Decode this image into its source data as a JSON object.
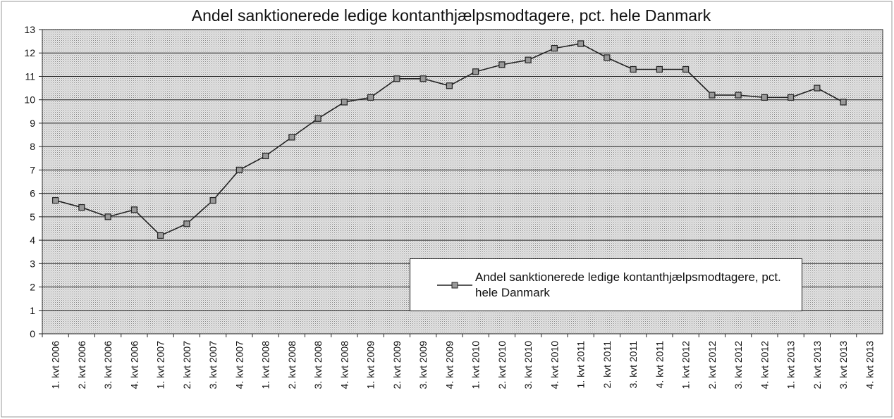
{
  "chart_data": {
    "type": "line",
    "title": "Andel sanktionerede ledige kontanthjælpsmodtagere, pct. hele Danmark",
    "categories": [
      "1. kvt 2006",
      "2. kvt 2006",
      "3. kvt 2006",
      "4. kvt 2006",
      "1. kvt 2007",
      "2. kvt 2007",
      "3. kvt 2007",
      "4. kvt 2007",
      "1. kvt 2008",
      "2. kvt 2008",
      "3. kvt 2008",
      "4. kvt 2008",
      "1. kvt 2009",
      "2. kvt 2009",
      "3. kvt 2009",
      "4. kvt 2009",
      "1. kvt 2010",
      "2. kvt 2010",
      "3. kvt 2010",
      "4. kvt 2010",
      "1. kvt 2011",
      "2. kvt 2011",
      "3. kvt 2011",
      "4. kvt 2011",
      "1. kvt 2012",
      "2. kvt 2012",
      "3. kvt 2012",
      "4. kvt 2012",
      "1. kvt 2013",
      "2. kvt 2013",
      "3. kvt 2013",
      "4. kvt 2013"
    ],
    "series": [
      {
        "name": "Andel sanktionerede ledige kontanthjælpsmodtagere, pct. hele Danmark",
        "color": "#222222",
        "values": [
          5.7,
          5.4,
          5.0,
          5.3,
          4.2,
          4.7,
          5.7,
          7.0,
          7.6,
          8.4,
          9.2,
          9.9,
          10.1,
          10.9,
          10.9,
          10.6,
          11.2,
          11.5,
          11.7,
          12.2,
          12.4,
          11.8,
          11.3,
          11.3,
          11.3,
          10.2,
          10.2,
          10.1,
          10.1,
          10.5,
          9.9,
          null
        ]
      }
    ],
    "ylim": [
      0,
      13
    ],
    "yticks": [
      0,
      1,
      2,
      3,
      4,
      5,
      6,
      7,
      8,
      9,
      10,
      11,
      12,
      13
    ],
    "grid": true,
    "legend": "lower right"
  }
}
